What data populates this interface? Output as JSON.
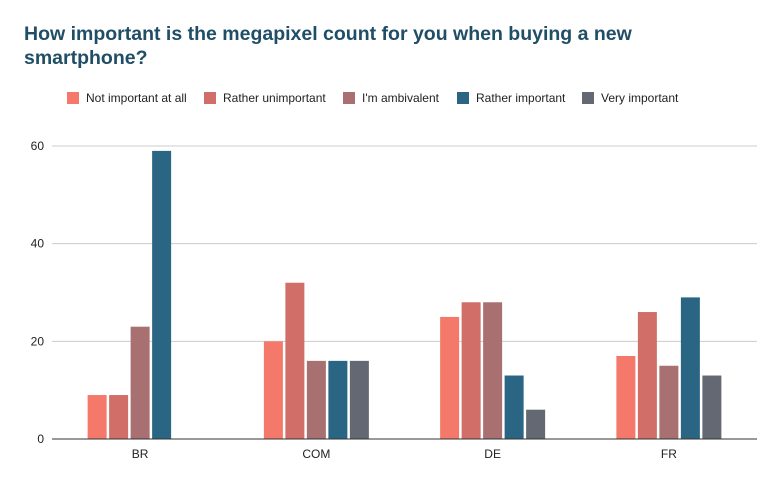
{
  "chart_data": {
    "type": "bar",
    "title": "How important is the megapixel count for you when buying a new smartphone?",
    "categories": [
      "BR",
      "COM",
      "DE",
      "FR"
    ],
    "series": [
      {
        "name": "Not important at all",
        "color": "#f4796a",
        "values": [
          9,
          20,
          25,
          17
        ]
      },
      {
        "name": "Rather unimportant",
        "color": "#d06e67",
        "values": [
          9,
          32,
          28,
          26
        ]
      },
      {
        "name": "I'm ambivalent",
        "color": "#a87070",
        "values": [
          23,
          16,
          28,
          15
        ]
      },
      {
        "name": "Rather important",
        "color": "#2a6584",
        "values": [
          59,
          16,
          13,
          29
        ]
      },
      {
        "name": "Very important",
        "color": "#636872",
        "values": [
          0,
          16,
          6,
          13
        ]
      }
    ],
    "ylim": [
      0,
      60
    ],
    "yticks": [
      0,
      20,
      40,
      60
    ],
    "xlabel": "",
    "ylabel": "",
    "grid": true,
    "legend_position": "top",
    "colors": {
      "title": "#1f4e66",
      "grid": "#cccccc",
      "axis": "#333333"
    }
  }
}
